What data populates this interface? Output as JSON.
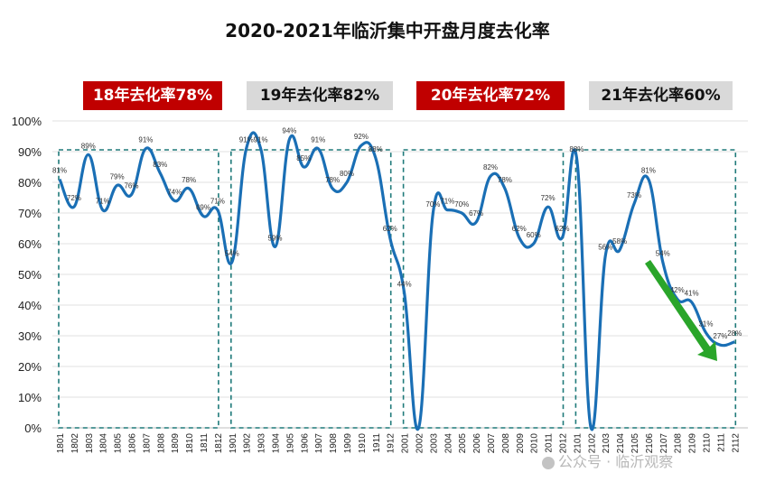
{
  "title": "2020-2021年临沂集中开盘月度去化率",
  "badges": [
    {
      "text": "18年去化率78%",
      "style": "red"
    },
    {
      "text": "19年去化率82%",
      "style": "gray"
    },
    {
      "text": "20年去化率72%",
      "style": "red"
    },
    {
      "text": "21年去化率60%",
      "style": "gray"
    }
  ],
  "watermark": "公众号 · 临沂观察",
  "colors": {
    "line": "#1a6fb5",
    "box": "#1f7a7a",
    "arrow": "#2aa52a",
    "grid": "#e0e0e0"
  },
  "chart_data": {
    "type": "line",
    "title": "2020-2021年临沂集中开盘月度去化率",
    "ylim": [
      0,
      100
    ],
    "yticks": [
      "0%",
      "10%",
      "20%",
      "30%",
      "40%",
      "50%",
      "60%",
      "70%",
      "80%",
      "90%",
      "100%"
    ],
    "grid": true,
    "categories": [
      "1801",
      "1802",
      "1803",
      "1804",
      "1805",
      "1806",
      "1807",
      "1808",
      "1809",
      "1810",
      "1811",
      "1812",
      "1901",
      "1902",
      "1903",
      "1904",
      "1905",
      "1906",
      "1907",
      "1908",
      "1909",
      "1910",
      "1911",
      "1912",
      "2001",
      "2002",
      "2003",
      "2004",
      "2005",
      "2006",
      "2007",
      "2008",
      "2009",
      "2010",
      "2011",
      "2012",
      "2101",
      "2102",
      "2103",
      "2104",
      "2105",
      "2106",
      "2107",
      "2108",
      "2109",
      "2110",
      "2111",
      "2112"
    ],
    "values": [
      81,
      72,
      89,
      71,
      79,
      76,
      91,
      83,
      74,
      78,
      69,
      71,
      54,
      91,
      91,
      59,
      94,
      85,
      91,
      78,
      80,
      92,
      88,
      62,
      44,
      0,
      70,
      71,
      70,
      67,
      82,
      78,
      62,
      60,
      72,
      62,
      88,
      0,
      56,
      58,
      73,
      81,
      54,
      42,
      41,
      31,
      27,
      28
    ],
    "labels": [
      "81%",
      "72%",
      "89%",
      "71%",
      "79%",
      "76%",
      "91%",
      "83%",
      "74%",
      "78%",
      "69%",
      "71%",
      "54%",
      "91%",
      "91%",
      "59%",
      "94%",
      "85%",
      "91%",
      "78%",
      "80%",
      "92%",
      "88%",
      "62%",
      "44%",
      "",
      "70%",
      "71%",
      "70%",
      "67%",
      "82%",
      "78%",
      "62%",
      "60%",
      "72%",
      "62%",
      "88%",
      "",
      "56%",
      "58%",
      "73%",
      "81%",
      "54%",
      "42%",
      "41%",
      "31%",
      "27%",
      "28%"
    ],
    "groups": [
      "18年",
      "19年",
      "20年",
      "21年"
    ]
  }
}
